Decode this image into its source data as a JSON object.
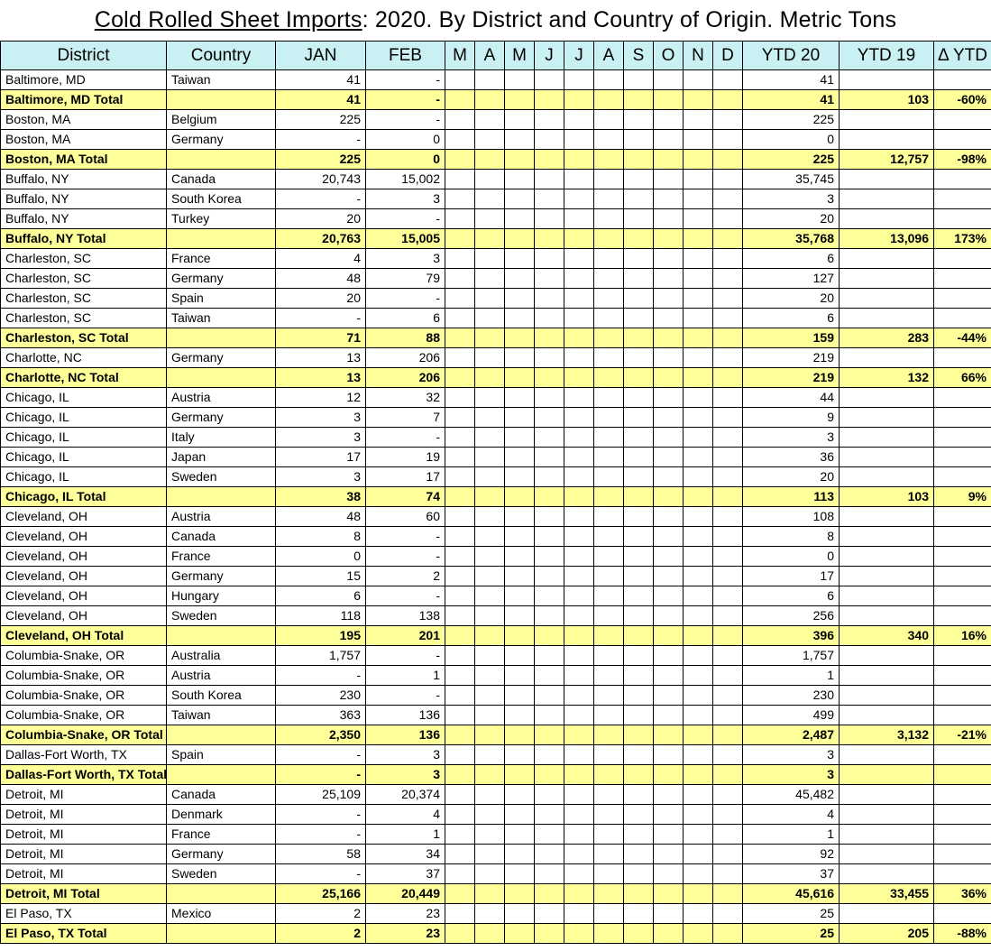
{
  "title": {
    "underlined_part": "Cold Rolled Sheet Imports",
    "rest_part": ": 2020. By District and Country of Origin. Metric Tons"
  },
  "colors": {
    "header_bg": "#c9f0f2",
    "total_row_bg": "#ffff99",
    "border": "#000000",
    "text": "#000000"
  },
  "table": {
    "columns": [
      "District",
      "Country",
      "JAN",
      "FEB",
      "M",
      "A",
      "M",
      "J",
      "J",
      "A",
      "S",
      "O",
      "N",
      "D",
      "YTD 20",
      "YTD 19",
      "Δ YTD"
    ],
    "empty_month_columns": 10,
    "rows": [
      {
        "is_total": false,
        "district": "Baltimore, MD",
        "country": "Taiwan",
        "jan": "41",
        "feb": "-",
        "ytd20": "41",
        "ytd19": "",
        "delta_ytd": ""
      },
      {
        "is_total": true,
        "district": "Baltimore, MD Total",
        "country": "",
        "jan": "41",
        "feb": "-",
        "ytd20": "41",
        "ytd19": "103",
        "delta_ytd": "-60%"
      },
      {
        "is_total": false,
        "district": "Boston, MA",
        "country": "Belgium",
        "jan": "225",
        "feb": "-",
        "ytd20": "225",
        "ytd19": "",
        "delta_ytd": ""
      },
      {
        "is_total": false,
        "district": "Boston, MA",
        "country": "Germany",
        "jan": "-",
        "feb": "0",
        "ytd20": "0",
        "ytd19": "",
        "delta_ytd": ""
      },
      {
        "is_total": true,
        "district": "Boston, MA Total",
        "country": "",
        "jan": "225",
        "feb": "0",
        "ytd20": "225",
        "ytd19": "12,757",
        "delta_ytd": "-98%"
      },
      {
        "is_total": false,
        "district": "Buffalo, NY",
        "country": "Canada",
        "jan": "20,743",
        "feb": "15,002",
        "ytd20": "35,745",
        "ytd19": "",
        "delta_ytd": ""
      },
      {
        "is_total": false,
        "district": "Buffalo, NY",
        "country": "South Korea",
        "jan": "-",
        "feb": "3",
        "ytd20": "3",
        "ytd19": "",
        "delta_ytd": ""
      },
      {
        "is_total": false,
        "district": "Buffalo, NY",
        "country": "Turkey",
        "jan": "20",
        "feb": "-",
        "ytd20": "20",
        "ytd19": "",
        "delta_ytd": ""
      },
      {
        "is_total": true,
        "district": "Buffalo, NY Total",
        "country": "",
        "jan": "20,763",
        "feb": "15,005",
        "ytd20": "35,768",
        "ytd19": "13,096",
        "delta_ytd": "173%"
      },
      {
        "is_total": false,
        "district": "Charleston, SC",
        "country": "France",
        "jan": "4",
        "feb": "3",
        "ytd20": "6",
        "ytd19": "",
        "delta_ytd": ""
      },
      {
        "is_total": false,
        "district": "Charleston, SC",
        "country": "Germany",
        "jan": "48",
        "feb": "79",
        "ytd20": "127",
        "ytd19": "",
        "delta_ytd": ""
      },
      {
        "is_total": false,
        "district": "Charleston, SC",
        "country": "Spain",
        "jan": "20",
        "feb": "-",
        "ytd20": "20",
        "ytd19": "",
        "delta_ytd": ""
      },
      {
        "is_total": false,
        "district": "Charleston, SC",
        "country": "Taiwan",
        "jan": "-",
        "feb": "6",
        "ytd20": "6",
        "ytd19": "",
        "delta_ytd": ""
      },
      {
        "is_total": true,
        "district": "Charleston, SC Total",
        "country": "",
        "jan": "71",
        "feb": "88",
        "ytd20": "159",
        "ytd19": "283",
        "delta_ytd": "-44%"
      },
      {
        "is_total": false,
        "district": "Charlotte, NC",
        "country": "Germany",
        "jan": "13",
        "feb": "206",
        "ytd20": "219",
        "ytd19": "",
        "delta_ytd": ""
      },
      {
        "is_total": true,
        "district": "Charlotte, NC Total",
        "country": "",
        "jan": "13",
        "feb": "206",
        "ytd20": "219",
        "ytd19": "132",
        "delta_ytd": "66%"
      },
      {
        "is_total": false,
        "district": "Chicago, IL",
        "country": "Austria",
        "jan": "12",
        "feb": "32",
        "ytd20": "44",
        "ytd19": "",
        "delta_ytd": ""
      },
      {
        "is_total": false,
        "district": "Chicago, IL",
        "country": "Germany",
        "jan": "3",
        "feb": "7",
        "ytd20": "9",
        "ytd19": "",
        "delta_ytd": ""
      },
      {
        "is_total": false,
        "district": "Chicago, IL",
        "country": "Italy",
        "jan": "3",
        "feb": "-",
        "ytd20": "3",
        "ytd19": "",
        "delta_ytd": ""
      },
      {
        "is_total": false,
        "district": "Chicago, IL",
        "country": "Japan",
        "jan": "17",
        "feb": "19",
        "ytd20": "36",
        "ytd19": "",
        "delta_ytd": ""
      },
      {
        "is_total": false,
        "district": "Chicago, IL",
        "country": "Sweden",
        "jan": "3",
        "feb": "17",
        "ytd20": "20",
        "ytd19": "",
        "delta_ytd": ""
      },
      {
        "is_total": true,
        "district": "Chicago, IL Total",
        "country": "",
        "jan": "38",
        "feb": "74",
        "ytd20": "113",
        "ytd19": "103",
        "delta_ytd": "9%"
      },
      {
        "is_total": false,
        "district": "Cleveland, OH",
        "country": "Austria",
        "jan": "48",
        "feb": "60",
        "ytd20": "108",
        "ytd19": "",
        "delta_ytd": ""
      },
      {
        "is_total": false,
        "district": "Cleveland, OH",
        "country": "Canada",
        "jan": "8",
        "feb": "-",
        "ytd20": "8",
        "ytd19": "",
        "delta_ytd": ""
      },
      {
        "is_total": false,
        "district": "Cleveland, OH",
        "country": "France",
        "jan": "0",
        "feb": "-",
        "ytd20": "0",
        "ytd19": "",
        "delta_ytd": ""
      },
      {
        "is_total": false,
        "district": "Cleveland, OH",
        "country": "Germany",
        "jan": "15",
        "feb": "2",
        "ytd20": "17",
        "ytd19": "",
        "delta_ytd": ""
      },
      {
        "is_total": false,
        "district": "Cleveland, OH",
        "country": "Hungary",
        "jan": "6",
        "feb": "-",
        "ytd20": "6",
        "ytd19": "",
        "delta_ytd": ""
      },
      {
        "is_total": false,
        "district": "Cleveland, OH",
        "country": "Sweden",
        "jan": "118",
        "feb": "138",
        "ytd20": "256",
        "ytd19": "",
        "delta_ytd": ""
      },
      {
        "is_total": true,
        "district": "Cleveland, OH Total",
        "country": "",
        "jan": "195",
        "feb": "201",
        "ytd20": "396",
        "ytd19": "340",
        "delta_ytd": "16%"
      },
      {
        "is_total": false,
        "district": "Columbia-Snake, OR",
        "country": "Australia",
        "jan": "1,757",
        "feb": "-",
        "ytd20": "1,757",
        "ytd19": "",
        "delta_ytd": ""
      },
      {
        "is_total": false,
        "district": "Columbia-Snake, OR",
        "country": "Austria",
        "jan": "-",
        "feb": "1",
        "ytd20": "1",
        "ytd19": "",
        "delta_ytd": ""
      },
      {
        "is_total": false,
        "district": "Columbia-Snake, OR",
        "country": "South Korea",
        "jan": "230",
        "feb": "-",
        "ytd20": "230",
        "ytd19": "",
        "delta_ytd": ""
      },
      {
        "is_total": false,
        "district": "Columbia-Snake, OR",
        "country": "Taiwan",
        "jan": "363",
        "feb": "136",
        "ytd20": "499",
        "ytd19": "",
        "delta_ytd": ""
      },
      {
        "is_total": true,
        "district": "Columbia-Snake, OR Total",
        "country": "",
        "jan": "2,350",
        "feb": "136",
        "ytd20": "2,487",
        "ytd19": "3,132",
        "delta_ytd": "-21%"
      },
      {
        "is_total": false,
        "district": "Dallas-Fort Worth, TX",
        "country": "Spain",
        "jan": "-",
        "feb": "3",
        "ytd20": "3",
        "ytd19": "",
        "delta_ytd": ""
      },
      {
        "is_total": true,
        "district": "Dallas-Fort Worth, TX Total",
        "country": "",
        "jan": "-",
        "feb": "3",
        "ytd20": "3",
        "ytd19": "",
        "delta_ytd": ""
      },
      {
        "is_total": false,
        "district": "Detroit, MI",
        "country": "Canada",
        "jan": "25,109",
        "feb": "20,374",
        "ytd20": "45,482",
        "ytd19": "",
        "delta_ytd": ""
      },
      {
        "is_total": false,
        "district": "Detroit, MI",
        "country": "Denmark",
        "jan": "-",
        "feb": "4",
        "ytd20": "4",
        "ytd19": "",
        "delta_ytd": ""
      },
      {
        "is_total": false,
        "district": "Detroit, MI",
        "country": "France",
        "jan": "-",
        "feb": "1",
        "ytd20": "1",
        "ytd19": "",
        "delta_ytd": ""
      },
      {
        "is_total": false,
        "district": "Detroit, MI",
        "country": "Germany",
        "jan": "58",
        "feb": "34",
        "ytd20": "92",
        "ytd19": "",
        "delta_ytd": ""
      },
      {
        "is_total": false,
        "district": "Detroit, MI",
        "country": "Sweden",
        "jan": "-",
        "feb": "37",
        "ytd20": "37",
        "ytd19": "",
        "delta_ytd": ""
      },
      {
        "is_total": true,
        "district": "Detroit, MI Total",
        "country": "",
        "jan": "25,166",
        "feb": "20,449",
        "ytd20": "45,616",
        "ytd19": "33,455",
        "delta_ytd": "36%"
      },
      {
        "is_total": false,
        "district": "El Paso, TX",
        "country": "Mexico",
        "jan": "2",
        "feb": "23",
        "ytd20": "25",
        "ytd19": "",
        "delta_ytd": ""
      },
      {
        "is_total": true,
        "district": "El Paso, TX Total",
        "country": "",
        "jan": "2",
        "feb": "23",
        "ytd20": "25",
        "ytd19": "205",
        "delta_ytd": "-88%"
      }
    ]
  }
}
